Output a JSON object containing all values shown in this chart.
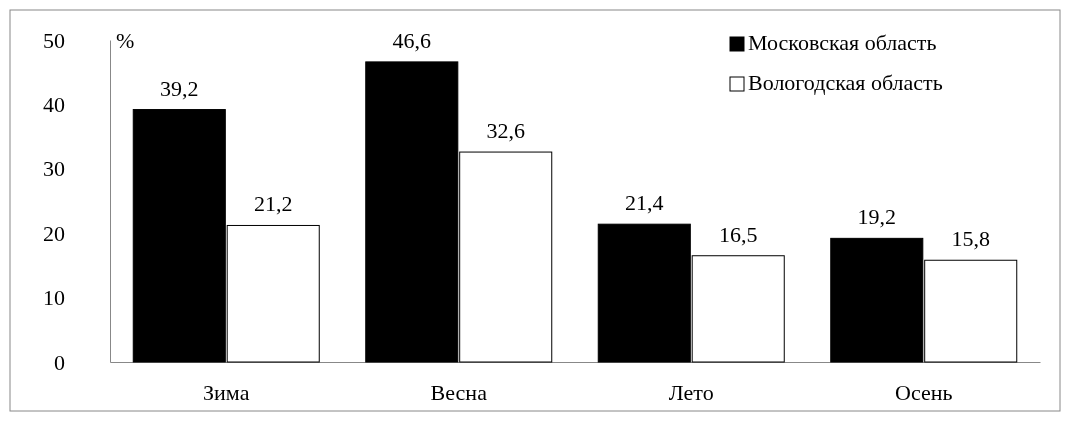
{
  "chart_data": {
    "type": "bar",
    "ylabel": "%",
    "categories": [
      "Зима",
      "Весна",
      "Лето",
      "Осень"
    ],
    "series": [
      {
        "name": "Московская область",
        "color": "#000000",
        "values": [
          39.2,
          46.6,
          21.4,
          19.2
        ],
        "value_labels": [
          "39,2",
          "46,6",
          "21,4",
          "19,2"
        ]
      },
      {
        "name": "Вологодская область",
        "color": "#ffffff",
        "values": [
          21.2,
          32.6,
          16.5,
          15.8
        ],
        "value_labels": [
          "21,2",
          "32,6",
          "16,5",
          "15,8"
        ]
      }
    ],
    "ylim": [
      0,
      50
    ],
    "yticks": [
      0,
      10,
      20,
      30,
      40,
      50
    ],
    "grid": false,
    "legend": "top right"
  }
}
